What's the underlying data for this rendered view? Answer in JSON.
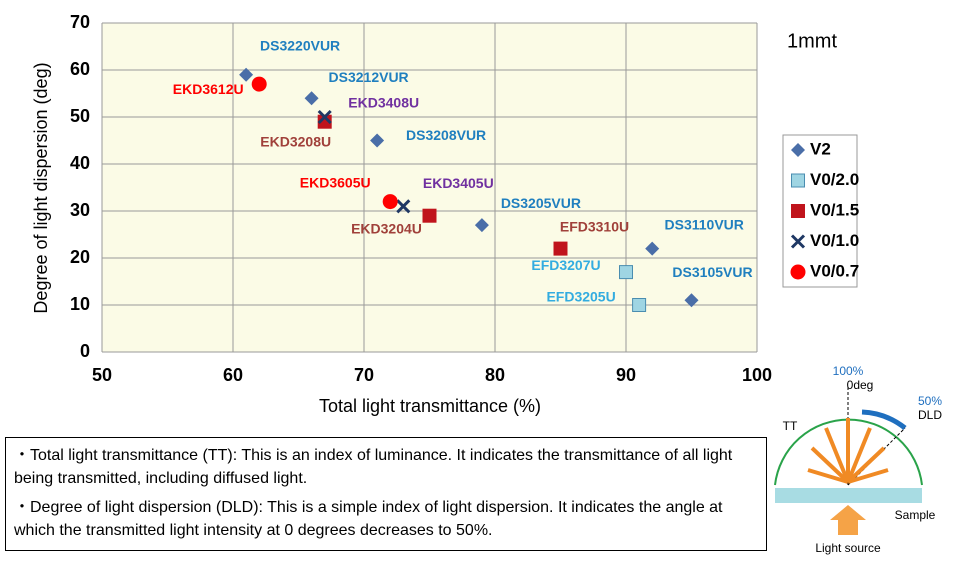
{
  "chart_data": {
    "type": "scatter",
    "xlabel": "Total light transmittance (%)",
    "ylabel": "Degree of light dispersion (deg)",
    "annotation": "1mmt",
    "xlim": [
      50,
      100
    ],
    "xticks": [
      50,
      60,
      70,
      80,
      90,
      100
    ],
    "ylim": [
      0,
      70
    ],
    "yticks": [
      0,
      10,
      20,
      30,
      40,
      50,
      60,
      70
    ],
    "grid": true,
    "legend": "right",
    "series": [
      {
        "name": "V2",
        "marker": "diamond",
        "color": "#4a6ea8",
        "label_color": "#1f7fbf",
        "x": [
          61,
          66,
          71,
          79,
          92,
          95
        ],
        "values": [
          59,
          54,
          45,
          27,
          22,
          11
        ],
        "labels": [
          "DS3220VUR",
          "DS3212VUR",
          "DS3208VUR",
          "DS3205VUR",
          "DS3110VUR",
          "DS3105VUR"
        ]
      },
      {
        "name": "V0/2.0",
        "marker": "square",
        "color": "#9fd5e3",
        "label_color": "#33ace0",
        "x": [
          90,
          91
        ],
        "values": [
          17,
          10
        ],
        "labels": [
          "EFD3207U",
          "EFD3205U"
        ]
      },
      {
        "name": "V0/1.5",
        "marker": "square",
        "color": "#c0141c",
        "label_color": "#a0403a",
        "x": [
          67,
          75,
          85
        ],
        "values": [
          49,
          29,
          22
        ],
        "labels": [
          "EKD3208U",
          "EKD3204U",
          "EFD3310U"
        ]
      },
      {
        "name": "V0/1.0",
        "marker": "x",
        "color": "#1f3864",
        "label_color": "#7030a0",
        "x": [
          67,
          73
        ],
        "values": [
          50,
          31
        ],
        "labels": [
          "EKD3408U",
          "EKD3405U"
        ]
      },
      {
        "name": "V0/0.7",
        "marker": "circle",
        "color": "#ff0000",
        "label_color": "#ff0000",
        "x": [
          62,
          72
        ],
        "values": [
          57,
          32
        ],
        "labels": [
          "EKD3612U",
          "EKD3605U"
        ]
      }
    ]
  },
  "notes": [
    "・Total light transmittance (TT): This is an index of luminance. It indicates the transmittance of all light being transmitted, including diffused light.",
    "・Degree of light dispersion (DLD): This is a simple index of light dispersion. It indicates the angle at which the transmitted light intensity at 0 degrees decreases to 50%."
  ],
  "diagram": {
    "top_percent": "100%",
    "top_angle": "0deg",
    "half_percent": "50%",
    "dld": "DLD",
    "tt": "TT",
    "sample": "Sample",
    "source": "Light source"
  }
}
